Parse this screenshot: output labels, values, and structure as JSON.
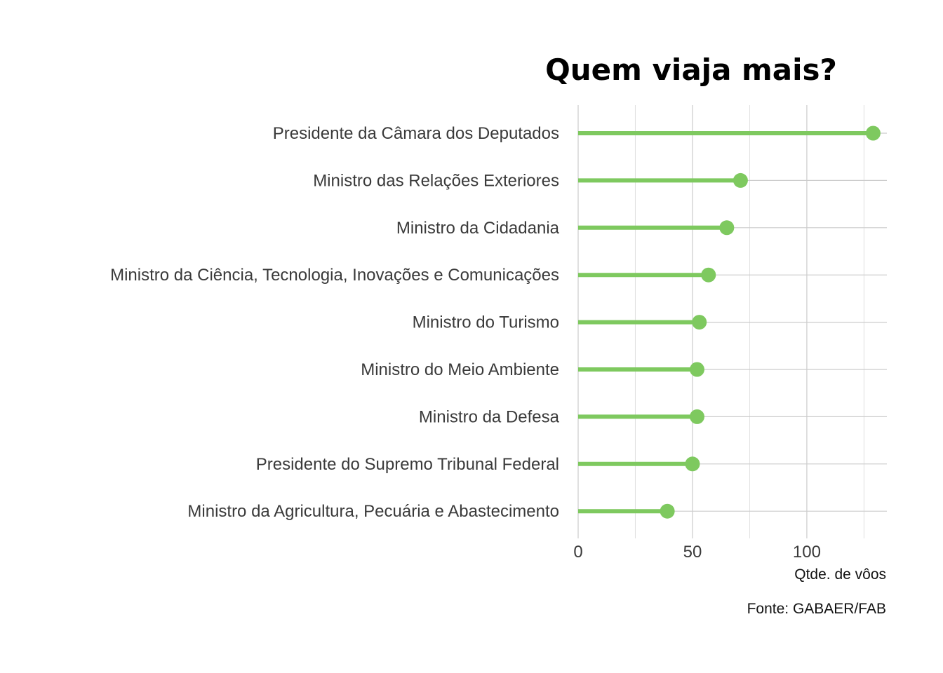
{
  "chart_data": {
    "type": "lollipop",
    "title": "Quem viaja mais?",
    "xlabel": "Qtde. de vôos",
    "ylabel": "",
    "caption": "Fonte: GABAER/FAB",
    "xlim": [
      0,
      135
    ],
    "x_ticks": [
      0,
      50,
      100
    ],
    "x_tick_labels": [
      "0",
      "50",
      "100"
    ],
    "grid": true,
    "color": "#7ec95f",
    "categories": [
      "Presidente da Câmara dos Deputados",
      "Ministro das Relações Exteriores",
      "Ministro da Cidadania",
      "Ministro da Ciência, Tecnologia, Inovações e Comunicações",
      "Ministro do Turismo",
      "Ministro do Meio Ambiente",
      "Ministro da Defesa",
      "Presidente do Supremo Tribunal Federal",
      "Ministro da Agricultura, Pecuária e Abastecimento"
    ],
    "values": [
      129,
      71,
      65,
      57,
      53,
      52,
      52,
      50,
      39
    ]
  }
}
